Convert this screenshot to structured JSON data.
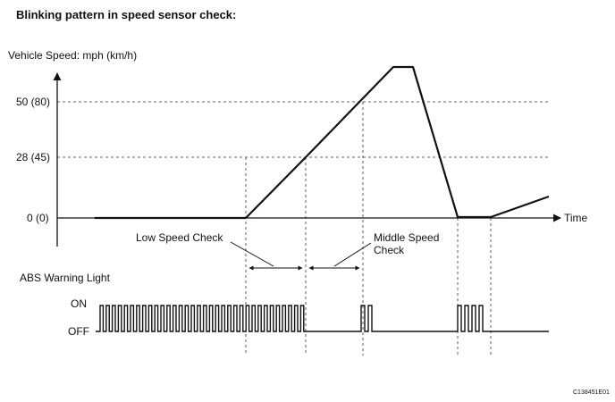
{
  "title": "Blinking pattern in speed sensor check:",
  "y_axis_label": "Vehicle Speed: mph (km/h)",
  "y_ticks": [
    "50 (80)",
    "28 (45)",
    "0 (0)"
  ],
  "x_axis_label": "Time",
  "annotations": {
    "low_speed_check": "Low Speed Check",
    "middle_speed_check_line1": "Middle Speed",
    "middle_speed_check_line2": "Check"
  },
  "warning_light": {
    "label": "ABS Warning Light",
    "on_label": "ON",
    "off_label": "OFF"
  },
  "figure_code": "C138451E01"
}
